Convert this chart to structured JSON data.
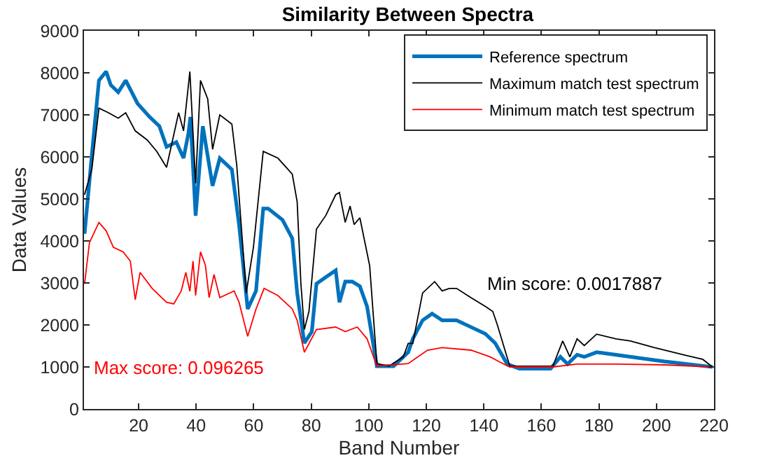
{
  "chart_data": {
    "type": "line",
    "title": "Similarity Between Spectra",
    "xlabel": "Band Number",
    "ylabel": "Data Values",
    "xlim": [
      1,
      220
    ],
    "xticks": [
      20,
      40,
      60,
      80,
      100,
      120,
      140,
      160,
      180,
      200,
      220
    ],
    "ylim": [
      0,
      9000
    ],
    "yticks": [
      0,
      1000,
      2000,
      3000,
      4000,
      5000,
      6000,
      7000,
      8000,
      9000
    ],
    "legend": "top right",
    "marker": "none",
    "line_style": "solid",
    "annotations": [
      "Max score: 0.096265",
      "Min score: 0.0017887"
    ],
    "series": [
      {
        "name": "Reference spectrum",
        "color": "#0072bd",
        "x": [
          1.2,
          3.7,
          6.2,
          8.7,
          10.3,
          12.9,
          15.5,
          19.6,
          23.8,
          27.2,
          29.7,
          33.1,
          35.6,
          37.3,
          38,
          39.8,
          42.3,
          45.7,
          48.2,
          52.4,
          54.9,
          57.9,
          60.8,
          63.3,
          65,
          70,
          73.4,
          75.1,
          77.6,
          80.2,
          81.8,
          85.1,
          88.5,
          89.8,
          91.8,
          94.3,
          96.9,
          99.4,
          102.8,
          108.6,
          113.7,
          115.3,
          118.7,
          122,
          125.5,
          130.5,
          135.5,
          140.5,
          143.9,
          148.1,
          152.3,
          163.2,
          166.6,
          169.1,
          172.4,
          174.9,
          179.2,
          185.9,
          202.7,
          219.5
        ],
        "values": [
          4170,
          6030,
          7820,
          8030,
          7710,
          7540,
          7820,
          7270,
          6950,
          6730,
          6240,
          6350,
          5970,
          6560,
          6950,
          4600,
          6730,
          5310,
          5970,
          5700,
          4390,
          2380,
          2810,
          4770,
          4770,
          4500,
          4060,
          2760,
          1570,
          1840,
          2980,
          3140,
          3300,
          2540,
          3030,
          3030,
          2920,
          2440,
          1020,
          1020,
          1350,
          1670,
          2110,
          2270,
          2110,
          2110,
          1950,
          1790,
          1570,
          1070,
          960,
          960,
          1240,
          1070,
          1290,
          1240,
          1350,
          1290,
          1130,
          1000
        ]
      },
      {
        "name": "Maximum match test spectrum",
        "color": "#000000",
        "x": [
          1.2,
          3.7,
          6.2,
          9.5,
          12.9,
          15.5,
          18.8,
          23,
          26.3,
          29.7,
          33.9,
          35.6,
          37.8,
          39.8,
          41.5,
          44,
          45.7,
          48.2,
          52.4,
          54.1,
          57.4,
          59.9,
          63.3,
          68.4,
          73.4,
          75.1,
          76.4,
          77.6,
          79.2,
          81.8,
          85.1,
          88.5,
          89.8,
          91.8,
          93.5,
          94.9,
          96.9,
          100.3,
          102.8,
          107,
          112,
          113.7,
          115.3,
          118.7,
          122.9,
          125.5,
          128,
          130.5,
          135.5,
          140.5,
          143.1,
          144.7,
          149,
          164,
          167.4,
          169.9,
          172.4,
          174.9,
          179.2,
          185.9,
          190.9,
          199.3,
          209.4,
          216.1,
          219.5
        ],
        "values": [
          5100,
          5700,
          7160,
          7050,
          6920,
          7050,
          6620,
          6400,
          6130,
          5750,
          7050,
          6620,
          8030,
          5370,
          7820,
          7380,
          6180,
          7000,
          6780,
          5800,
          2760,
          3850,
          6130,
          5970,
          5590,
          4930,
          2980,
          1890,
          2320,
          4280,
          4610,
          5100,
          5150,
          4440,
          4830,
          4390,
          4550,
          3410,
          1080,
          1020,
          1240,
          1560,
          1560,
          2760,
          3030,
          2810,
          2870,
          2870,
          2650,
          2440,
          2320,
          2000,
          1020,
          1020,
          1620,
          1240,
          1670,
          1510,
          1780,
          1670,
          1620,
          1460,
          1290,
          1180,
          1000
        ]
      },
      {
        "name": "Minimum match test spectrum",
        "color": "#ff0000",
        "x": [
          1.2,
          2.9,
          6.2,
          8.7,
          11.2,
          14.6,
          17.1,
          18.8,
          20.5,
          24.7,
          29.7,
          32.2,
          34.8,
          36.4,
          37.8,
          38.9,
          39.8,
          41.5,
          43.2,
          44.5,
          46.2,
          48.2,
          53.2,
          54.9,
          57.9,
          60.8,
          63.6,
          68.4,
          73.4,
          75.1,
          77.6,
          81.8,
          88.5,
          91.8,
          96,
          99.4,
          102.8,
          113.7,
          120.4,
          125.5,
          135.5,
          142.2,
          145.2,
          149,
          164,
          172.4,
          185.9,
          202.7,
          219.5
        ],
        "values": [
          2980,
          3960,
          4440,
          4240,
          3850,
          3740,
          3520,
          2600,
          3250,
          2870,
          2540,
          2500,
          2810,
          3250,
          2800,
          3520,
          2700,
          3740,
          3420,
          2650,
          3200,
          2650,
          2810,
          2540,
          1730,
          2380,
          2870,
          2700,
          2380,
          2110,
          1350,
          1890,
          1950,
          1840,
          1950,
          1670,
          1020,
          1080,
          1400,
          1460,
          1400,
          1240,
          1130,
          1000,
          1000,
          1070,
          1070,
          1050,
          1000
        ]
      }
    ]
  }
}
